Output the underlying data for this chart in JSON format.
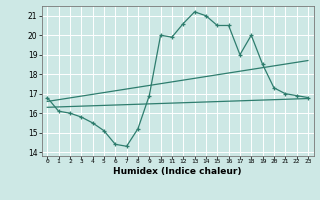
{
  "title": "",
  "xlabel": "Humidex (Indice chaleur)",
  "ylabel": "",
  "xlim": [
    -0.5,
    23.5
  ],
  "ylim": [
    13.8,
    21.5
  ],
  "xticks": [
    0,
    1,
    2,
    3,
    4,
    5,
    6,
    7,
    8,
    9,
    10,
    11,
    12,
    13,
    14,
    15,
    16,
    17,
    18,
    19,
    20,
    21,
    22,
    23
  ],
  "yticks": [
    14,
    15,
    16,
    17,
    18,
    19,
    20,
    21
  ],
  "background_color": "#cde8e5",
  "grid_color": "#ffffff",
  "line_color": "#2e7d6e",
  "line1_x": [
    0,
    1,
    2,
    3,
    4,
    5,
    6,
    7,
    8,
    9,
    10,
    11,
    12,
    13,
    14,
    15,
    16,
    17,
    18,
    19,
    20,
    21,
    22,
    23
  ],
  "line1_y": [
    16.8,
    16.1,
    16.0,
    15.8,
    15.5,
    15.1,
    14.4,
    14.3,
    15.2,
    16.9,
    20.0,
    19.9,
    20.6,
    21.2,
    21.0,
    20.5,
    20.5,
    19.0,
    20.0,
    18.5,
    17.3,
    17.0,
    16.9,
    16.8
  ],
  "line2_x": [
    0,
    23
  ],
  "line2_y": [
    16.6,
    18.7
  ],
  "line3_x": [
    0,
    23
  ],
  "line3_y": [
    16.3,
    16.75
  ]
}
